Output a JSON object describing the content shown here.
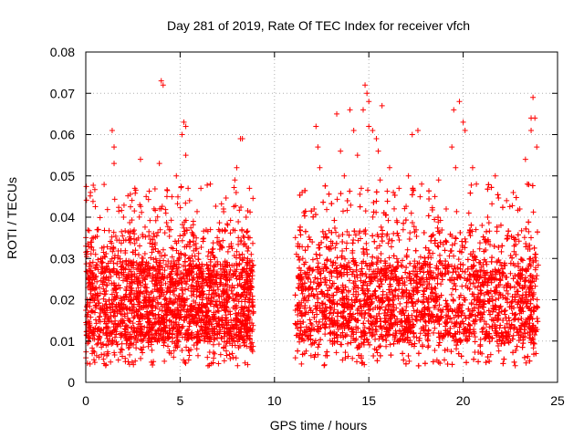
{
  "chart_data": {
    "type": "scatter",
    "title": "Day 281 of 2019, Rate Of TEC Index for receiver vfch",
    "xlabel": "GPS time / hours",
    "ylabel": "ROTI / TECUs",
    "xlim": [
      0,
      25
    ],
    "ylim": [
      0,
      0.08
    ],
    "xticks": [
      0,
      5,
      10,
      15,
      20,
      25
    ],
    "xtick_labels": [
      "0",
      "5",
      "10",
      "15",
      "20",
      "25"
    ],
    "yticks": [
      0,
      0.01,
      0.02,
      0.03,
      0.04,
      0.05,
      0.06,
      0.07,
      0.08
    ],
    "ytick_labels": [
      "0",
      "0.01",
      "0.02",
      "0.03",
      "0.04",
      "0.05",
      "0.06",
      "0.07",
      "0.08"
    ],
    "grid": true,
    "marker": "+",
    "marker_color": "#ff0000",
    "observed_intervals_hours": [
      [
        0.0,
        8.9
      ],
      [
        11.1,
        24.0
      ]
    ],
    "data_gap_hours": [
      8.9,
      11.1
    ],
    "typical_range": [
      0.008,
      0.03
    ],
    "series": [
      {
        "name": "ROTI",
        "points": [
          [
            0.3,
            0.034
          ],
          [
            0.4,
            0.035
          ],
          [
            1.4,
            0.061
          ],
          [
            1.5,
            0.057
          ],
          [
            1.5,
            0.053
          ],
          [
            2.0,
            0.04
          ],
          [
            2.6,
            0.047
          ],
          [
            2.9,
            0.054
          ],
          [
            3.2,
            0.045
          ],
          [
            3.9,
            0.053
          ],
          [
            4.0,
            0.073
          ],
          [
            4.1,
            0.072
          ],
          [
            4.3,
            0.045
          ],
          [
            4.5,
            0.037
          ],
          [
            4.8,
            0.05
          ],
          [
            5.1,
            0.06
          ],
          [
            5.2,
            0.063
          ],
          [
            5.3,
            0.062
          ],
          [
            5.3,
            0.055
          ],
          [
            5.5,
            0.044
          ],
          [
            5.7,
            0.039
          ],
          [
            6.1,
            0.047
          ],
          [
            6.6,
            0.048
          ],
          [
            7.3,
            0.042
          ],
          [
            7.9,
            0.049
          ],
          [
            8.0,
            0.052
          ],
          [
            8.2,
            0.059
          ],
          [
            8.3,
            0.059
          ],
          [
            8.5,
            0.04
          ],
          [
            8.7,
            0.035
          ],
          [
            11.5,
            0.03
          ],
          [
            12.0,
            0.034
          ],
          [
            12.1,
            0.042
          ],
          [
            12.2,
            0.062
          ],
          [
            12.3,
            0.057
          ],
          [
            12.4,
            0.052
          ],
          [
            12.7,
            0.036
          ],
          [
            13.0,
            0.033
          ],
          [
            13.3,
            0.065
          ],
          [
            13.5,
            0.056
          ],
          [
            13.7,
            0.05
          ],
          [
            14.0,
            0.066
          ],
          [
            14.2,
            0.061
          ],
          [
            14.4,
            0.055
          ],
          [
            14.6,
            0.047
          ],
          [
            14.7,
            0.066
          ],
          [
            14.8,
            0.072
          ],
          [
            14.9,
            0.07
          ],
          [
            15.0,
            0.068
          ],
          [
            15.0,
            0.062
          ],
          [
            15.2,
            0.061
          ],
          [
            15.4,
            0.059
          ],
          [
            15.5,
            0.056
          ],
          [
            15.6,
            0.049
          ],
          [
            15.7,
            0.067
          ],
          [
            16.1,
            0.052
          ],
          [
            16.3,
            0.046
          ],
          [
            16.6,
            0.047
          ],
          [
            17.1,
            0.05
          ],
          [
            17.3,
            0.06
          ],
          [
            17.6,
            0.061
          ],
          [
            17.8,
            0.048
          ],
          [
            18.5,
            0.045
          ],
          [
            18.7,
            0.049
          ],
          [
            19.1,
            0.042
          ],
          [
            19.4,
            0.057
          ],
          [
            19.5,
            0.066
          ],
          [
            19.6,
            0.052
          ],
          [
            19.8,
            0.068
          ],
          [
            20.0,
            0.063
          ],
          [
            20.1,
            0.061
          ],
          [
            20.3,
            0.041
          ],
          [
            20.5,
            0.052
          ],
          [
            20.7,
            0.048
          ],
          [
            21.0,
            0.038
          ],
          [
            21.3,
            0.04
          ],
          [
            21.7,
            0.05
          ],
          [
            22.0,
            0.038
          ],
          [
            22.3,
            0.044
          ],
          [
            22.7,
            0.033
          ],
          [
            23.0,
            0.042
          ],
          [
            23.3,
            0.054
          ],
          [
            23.4,
            0.048
          ],
          [
            23.6,
            0.061
          ],
          [
            23.6,
            0.064
          ],
          [
            23.7,
            0.069
          ],
          [
            23.8,
            0.064
          ],
          [
            23.9,
            0.057
          ]
        ]
      }
    ]
  }
}
